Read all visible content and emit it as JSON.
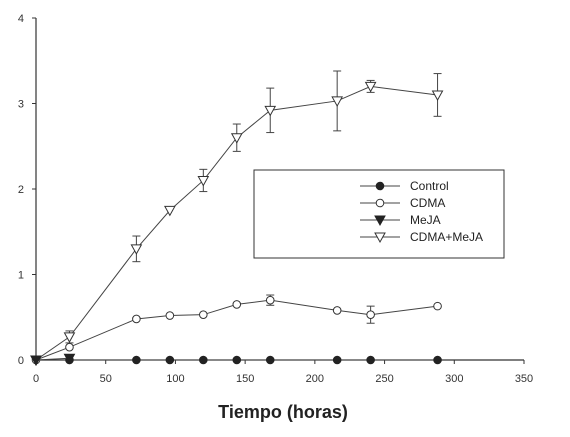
{
  "chart_data": {
    "type": "line",
    "title": "",
    "xlabel": "Tiempo (horas)",
    "ylabel": "",
    "xlim": [
      0,
      350
    ],
    "ylim": [
      0,
      4
    ],
    "xticks": [
      "0",
      "50",
      "100",
      "150",
      "200",
      "250",
      "300",
      "350"
    ],
    "yticks": [
      "0",
      "1",
      "2",
      "3",
      "4"
    ],
    "grid": false,
    "legend_position": "center-right",
    "series": [
      {
        "name": "Control",
        "marker": "filled-circle",
        "points": [
          [
            24,
            0
          ],
          [
            72,
            0
          ],
          [
            96,
            0
          ],
          [
            120,
            0
          ],
          [
            144,
            0
          ],
          [
            168,
            0
          ],
          [
            216,
            0
          ],
          [
            240,
            0
          ],
          [
            288,
            0
          ]
        ],
        "errors": []
      },
      {
        "name": "CDMA",
        "marker": "open-circle",
        "points": [
          [
            0,
            0
          ],
          [
            24,
            0.15
          ],
          [
            72,
            0.48
          ],
          [
            96,
            0.52
          ],
          [
            120,
            0.53
          ],
          [
            144,
            0.65
          ],
          [
            168,
            0.7
          ],
          [
            216,
            0.58
          ],
          [
            240,
            0.53
          ],
          [
            288,
            0.63
          ]
        ],
        "errors": [
          0,
          0,
          0,
          0,
          0,
          0,
          0.06,
          0,
          0.1,
          0
        ]
      },
      {
        "name": "MeJA",
        "marker": "filled-triangle-down",
        "points": [
          [
            0,
            0
          ],
          [
            24,
            0.02
          ]
        ],
        "errors": []
      },
      {
        "name": "CDMA+MeJA",
        "marker": "open-triangle-down",
        "points": [
          [
            0,
            0
          ],
          [
            24,
            0.27
          ],
          [
            72,
            1.3
          ],
          [
            96,
            1.75
          ],
          [
            120,
            2.1
          ],
          [
            144,
            2.6
          ],
          [
            168,
            2.92
          ],
          [
            216,
            3.03
          ],
          [
            240,
            3.2
          ],
          [
            288,
            3.1
          ]
        ],
        "errors": [
          0,
          0.07,
          0.15,
          0,
          0.13,
          0.16,
          0.26,
          0.35,
          0.07,
          0.25
        ]
      }
    ]
  }
}
